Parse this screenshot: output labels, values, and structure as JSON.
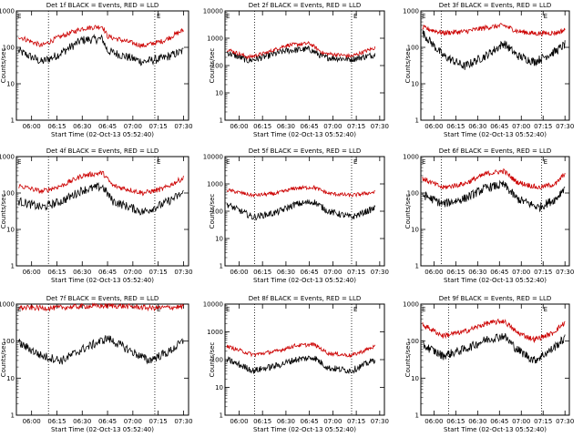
{
  "chart_data": [
    {
      "type": "line",
      "title": "Det 1f BLACK = Events, RED = LLD",
      "xlabel": "Start Time (02-Oct-13 05:52:40)",
      "ylabel": "Counts/sec",
      "x_ticks": [
        "06:00",
        "06:15",
        "06:30",
        "06:45",
        "07:00",
        "07:15",
        "07:30"
      ],
      "y_ticks": [
        "1",
        "10",
        "100",
        "1000"
      ],
      "ylim": [
        1,
        1000
      ],
      "ylog": true,
      "markers": [
        "06:10",
        "07:13"
      ],
      "marker_labels": [
        "",
        "E"
      ],
      "series": [
        {
          "color": "#000000",
          "values": [
            [
              5.87,
              80
            ],
            [
              6.1,
              40
            ],
            [
              6.25,
              60
            ],
            [
              6.5,
              160
            ],
            [
              6.7,
              170
            ],
            [
              6.75,
              80
            ],
            [
              7.1,
              40
            ],
            [
              7.3,
              50
            ],
            [
              7.5,
              80
            ]
          ]
        },
        {
          "color": "#cc0000",
          "values": [
            [
              5.87,
              200
            ],
            [
              6.1,
              110
            ],
            [
              6.25,
              180
            ],
            [
              6.5,
              330
            ],
            [
              6.7,
              380
            ],
            [
              6.75,
              200
            ],
            [
              7.1,
              110
            ],
            [
              7.3,
              150
            ],
            [
              7.5,
              300
            ]
          ]
        }
      ]
    },
    {
      "type": "line",
      "title": "Det 2f BLACK = Events, RED = LLD",
      "xlabel": "Start Time (02-Oct-13 05:52:40)",
      "ylabel": "Counts/sec",
      "x_ticks": [
        "06:00",
        "06:15",
        "06:30",
        "06:45",
        "07:00",
        "07:15",
        "07:30"
      ],
      "y_ticks": [
        "1",
        "10",
        "100",
        "1000",
        "10000"
      ],
      "ylim": [
        1,
        10000
      ],
      "ylog": true,
      "markers": [
        "06:10",
        "07:12"
      ],
      "marker_labels": [
        "",
        "E"
      ],
      "series": [
        {
          "color": "#000000",
          "values": [
            [
              5.87,
              300
            ],
            [
              6.1,
              150
            ],
            [
              6.3,
              220
            ],
            [
              6.5,
              350
            ],
            [
              6.75,
              400
            ],
            [
              6.9,
              200
            ],
            [
              7.2,
              170
            ],
            [
              7.45,
              250
            ]
          ]
        },
        {
          "color": "#cc0000",
          "values": [
            [
              5.87,
              400
            ],
            [
              6.1,
              200
            ],
            [
              6.3,
              300
            ],
            [
              6.5,
              550
            ],
            [
              6.75,
              650
            ],
            [
              6.9,
              280
            ],
            [
              7.2,
              220
            ],
            [
              7.45,
              450
            ]
          ]
        }
      ]
    },
    {
      "type": "line",
      "title": "Det 3f BLACK = Events, RED = LLD",
      "xlabel": "Start Time (02-Oct-13 05:52:40)",
      "ylabel": "Counts/sec",
      "x_ticks": [
        "06:00",
        "06:15",
        "06:30",
        "06:45",
        "07:00",
        "07:15",
        "07:30"
      ],
      "y_ticks": [
        "1",
        "10",
        "100",
        "1000"
      ],
      "ylim": [
        1,
        1000
      ],
      "ylog": true,
      "markers": [
        "06:05",
        "07:14"
      ],
      "marker_labels": [
        "",
        "E"
      ],
      "series": [
        {
          "color": "#000000",
          "values": [
            [
              5.87,
              250
            ],
            [
              6.1,
              60
            ],
            [
              6.35,
              30
            ],
            [
              6.6,
              60
            ],
            [
              6.8,
              130
            ],
            [
              6.95,
              60
            ],
            [
              7.15,
              40
            ],
            [
              7.4,
              80
            ],
            [
              7.5,
              120
            ]
          ]
        },
        {
          "color": "#cc0000",
          "values": [
            [
              5.87,
              350
            ],
            [
              6.1,
              250
            ],
            [
              6.35,
              270
            ],
            [
              6.6,
              350
            ],
            [
              6.8,
              400
            ],
            [
              6.95,
              280
            ],
            [
              7.15,
              240
            ],
            [
              7.4,
              250
            ],
            [
              7.5,
              300
            ]
          ]
        }
      ]
    },
    {
      "type": "line",
      "title": "Det 4f BLACK = Events, RED = LLD",
      "xlabel": "Start Time (02-Oct-13 05:52:40)",
      "ylabel": "Counts/sec",
      "x_ticks": [
        "06:00",
        "06:15",
        "06:30",
        "06:45",
        "07:00",
        "07:15",
        "07:30"
      ],
      "y_ticks": [
        "1",
        "10",
        "100",
        "1000"
      ],
      "ylim": [
        1,
        1000
      ],
      "ylog": true,
      "markers": [
        "06:10",
        "07:13"
      ],
      "marker_labels": [
        "",
        "E"
      ],
      "series": [
        {
          "color": "#000000",
          "values": [
            [
              5.87,
              60
            ],
            [
              6.1,
              40
            ],
            [
              6.3,
              60
            ],
            [
              6.5,
              120
            ],
            [
              6.7,
              150
            ],
            [
              6.8,
              60
            ],
            [
              7.1,
              30
            ],
            [
              7.3,
              50
            ],
            [
              7.5,
              100
            ]
          ]
        },
        {
          "color": "#cc0000",
          "values": [
            [
              5.87,
              160
            ],
            [
              6.1,
              110
            ],
            [
              6.3,
              160
            ],
            [
              6.5,
              300
            ],
            [
              6.7,
              360
            ],
            [
              6.8,
              160
            ],
            [
              7.1,
              100
            ],
            [
              7.3,
              130
            ],
            [
              7.5,
              260
            ]
          ]
        }
      ]
    },
    {
      "type": "line",
      "title": "Det 5f BLACK = Events, RED = LLD",
      "xlabel": "Start Time (02-Oct-13 05:52:40)",
      "ylabel": "Counts/sec",
      "x_ticks": [
        "06:00",
        "06:15",
        "06:30",
        "06:45",
        "07:00",
        "07:15",
        "07:30"
      ],
      "y_ticks": [
        "1",
        "10",
        "100",
        "1000",
        "10000"
      ],
      "ylim": [
        1,
        10000
      ],
      "ylog": true,
      "markers": [
        "06:10",
        "07:12"
      ],
      "marker_labels": [
        "",
        "E"
      ],
      "series": [
        {
          "color": "#000000",
          "values": [
            [
              5.87,
              180
            ],
            [
              6.15,
              60
            ],
            [
              6.4,
              90
            ],
            [
              6.6,
              180
            ],
            [
              6.8,
              220
            ],
            [
              6.95,
              100
            ],
            [
              7.2,
              60
            ],
            [
              7.45,
              130
            ]
          ]
        },
        {
          "color": "#cc0000",
          "values": [
            [
              5.87,
              600
            ],
            [
              6.15,
              380
            ],
            [
              6.4,
              450
            ],
            [
              6.6,
              700
            ],
            [
              6.8,
              750
            ],
            [
              6.95,
              450
            ],
            [
              7.2,
              380
            ],
            [
              7.45,
              500
            ]
          ]
        }
      ]
    },
    {
      "type": "line",
      "title": "Det 6f BLACK = Events, RED = LLD",
      "xlabel": "Start Time (02-Oct-13 05:52:40)",
      "ylabel": "Counts/sec",
      "x_ticks": [
        "06:00",
        "06:15",
        "06:30",
        "06:45",
        "07:00",
        "07:15",
        "07:30"
      ],
      "y_ticks": [
        "1",
        "10",
        "100",
        "1000"
      ],
      "ylim": [
        1,
        1000
      ],
      "ylog": true,
      "markers": [
        "06:05",
        "07:14"
      ],
      "marker_labels": [
        "",
        "E"
      ],
      "series": [
        {
          "color": "#000000",
          "values": [
            [
              5.87,
              90
            ],
            [
              6.1,
              50
            ],
            [
              6.35,
              70
            ],
            [
              6.6,
              140
            ],
            [
              6.8,
              170
            ],
            [
              6.95,
              70
            ],
            [
              7.2,
              40
            ],
            [
              7.4,
              70
            ],
            [
              7.5,
              150
            ]
          ]
        },
        {
          "color": "#cc0000",
          "values": [
            [
              5.87,
              250
            ],
            [
              6.1,
              140
            ],
            [
              6.35,
              180
            ],
            [
              6.6,
              340
            ],
            [
              6.8,
              400
            ],
            [
              6.95,
              200
            ],
            [
              7.2,
              140
            ],
            [
              7.4,
              180
            ],
            [
              7.5,
              350
            ]
          ]
        }
      ]
    },
    {
      "type": "line",
      "title": "Det 7f BLACK = Events, RED = LLD",
      "xlabel": "Start Time (02-Oct-13 05:52:40)",
      "ylabel": "Counts/sec",
      "x_ticks": [
        "06:00",
        "06:15",
        "06:30",
        "06:45",
        "07:00",
        "07:15",
        "07:30"
      ],
      "y_ticks": [
        "1",
        "10",
        "100",
        "1000"
      ],
      "ylim": [
        1,
        1000
      ],
      "ylog": true,
      "markers": [
        "06:10",
        "07:13"
      ],
      "marker_labels": [
        "",
        "E"
      ],
      "series": [
        {
          "color": "#000000",
          "values": [
            [
              5.87,
              90
            ],
            [
              6.1,
              40
            ],
            [
              6.3,
              30
            ],
            [
              6.5,
              60
            ],
            [
              6.75,
              120
            ],
            [
              6.95,
              60
            ],
            [
              7.15,
              30
            ],
            [
              7.35,
              50
            ],
            [
              7.5,
              100
            ]
          ]
        },
        {
          "color": "#cc0000",
          "values": [
            [
              5.87,
              800
            ],
            [
              6.2,
              780
            ],
            [
              6.5,
              870
            ],
            [
              6.8,
              900
            ],
            [
              7.0,
              850
            ],
            [
              7.2,
              780
            ],
            [
              7.5,
              850
            ]
          ]
        }
      ]
    },
    {
      "type": "line",
      "title": "Det 8f BLACK = Events, RED = LLD",
      "xlabel": "Start Time (02-Oct-13 05:52:40)",
      "ylabel": "Counts/sec",
      "x_ticks": [
        "06:00",
        "06:15",
        "06:30",
        "06:45",
        "07:00",
        "07:15",
        "07:30"
      ],
      "y_ticks": [
        "1",
        "10",
        "100",
        "1000",
        "10000"
      ],
      "ylim": [
        1,
        10000
      ],
      "ylog": true,
      "markers": [
        "06:10",
        "07:12"
      ],
      "marker_labels": [
        "",
        "E"
      ],
      "series": [
        {
          "color": "#000000",
          "values": [
            [
              5.87,
              100
            ],
            [
              6.15,
              40
            ],
            [
              6.4,
              60
            ],
            [
              6.6,
              100
            ],
            [
              6.8,
              120
            ],
            [
              6.95,
              50
            ],
            [
              7.2,
              40
            ],
            [
              7.45,
              100
            ]
          ]
        },
        {
          "color": "#cc0000",
          "values": [
            [
              5.87,
              300
            ],
            [
              6.15,
              150
            ],
            [
              6.4,
              200
            ],
            [
              6.6,
              320
            ],
            [
              6.8,
              350
            ],
            [
              6.95,
              170
            ],
            [
              7.2,
              140
            ],
            [
              7.45,
              300
            ]
          ]
        }
      ]
    },
    {
      "type": "line",
      "title": "Det 9f BLACK = Events, RED = LLD",
      "xlabel": "Start Time (02-Oct-13 05:52:40)",
      "ylabel": "Counts/sec",
      "x_ticks": [
        "06:00",
        "06:15",
        "06:30",
        "06:45",
        "07:00",
        "07:15",
        "07:30"
      ],
      "y_ticks": [
        "1",
        "10",
        "100",
        "1000"
      ],
      "ylim": [
        1,
        1000
      ],
      "ylog": true,
      "markers": [
        "06:10",
        "07:14"
      ],
      "marker_labels": [
        "",
        "E"
      ],
      "series": [
        {
          "color": "#000000",
          "values": [
            [
              5.87,
              80
            ],
            [
              6.1,
              40
            ],
            [
              6.35,
              60
            ],
            [
              6.6,
              110
            ],
            [
              6.8,
              140
            ],
            [
              6.95,
              60
            ],
            [
              7.15,
              30
            ],
            [
              7.35,
              60
            ],
            [
              7.5,
              120
            ]
          ]
        },
        {
          "color": "#cc0000",
          "values": [
            [
              5.87,
              280
            ],
            [
              6.1,
              140
            ],
            [
              6.35,
              180
            ],
            [
              6.6,
              300
            ],
            [
              6.8,
              350
            ],
            [
              6.95,
              170
            ],
            [
              7.15,
              110
            ],
            [
              7.35,
              160
            ],
            [
              7.5,
              320
            ]
          ]
        }
      ]
    }
  ]
}
